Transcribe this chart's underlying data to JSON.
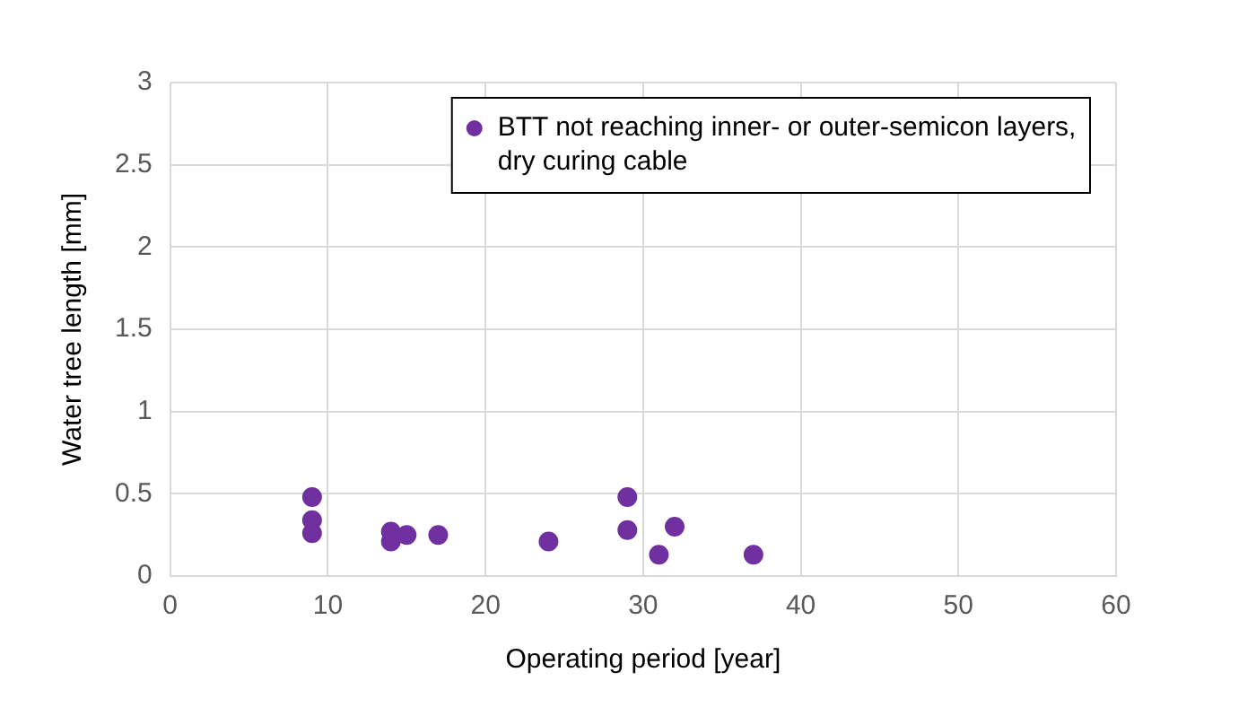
{
  "chart_data": {
    "type": "scatter",
    "xlabel": "Operating period [year]",
    "ylabel": "Water tree length [mm]",
    "series": [
      {
        "name": "BTT not reaching inner- or outer-semicon layers,\ndry curing cable",
        "color": "#7030a0",
        "x": [
          9,
          9,
          9,
          14,
          14,
          15,
          17,
          24,
          29,
          29,
          31,
          32,
          37
        ],
        "values": [
          0.48,
          0.34,
          0.26,
          0.27,
          0.21,
          0.25,
          0.25,
          0.21,
          0.48,
          0.28,
          0.13,
          0.3,
          0.13
        ]
      }
    ],
    "xlim": [
      0,
      60
    ],
    "xticks": [
      0,
      10,
      20,
      30,
      40,
      50,
      60
    ],
    "ylim": [
      0,
      3
    ],
    "yticks": [
      0,
      0.5,
      1,
      1.5,
      2,
      2.5,
      3
    ],
    "grid": true,
    "legend": "top right",
    "marker": "circle"
  }
}
